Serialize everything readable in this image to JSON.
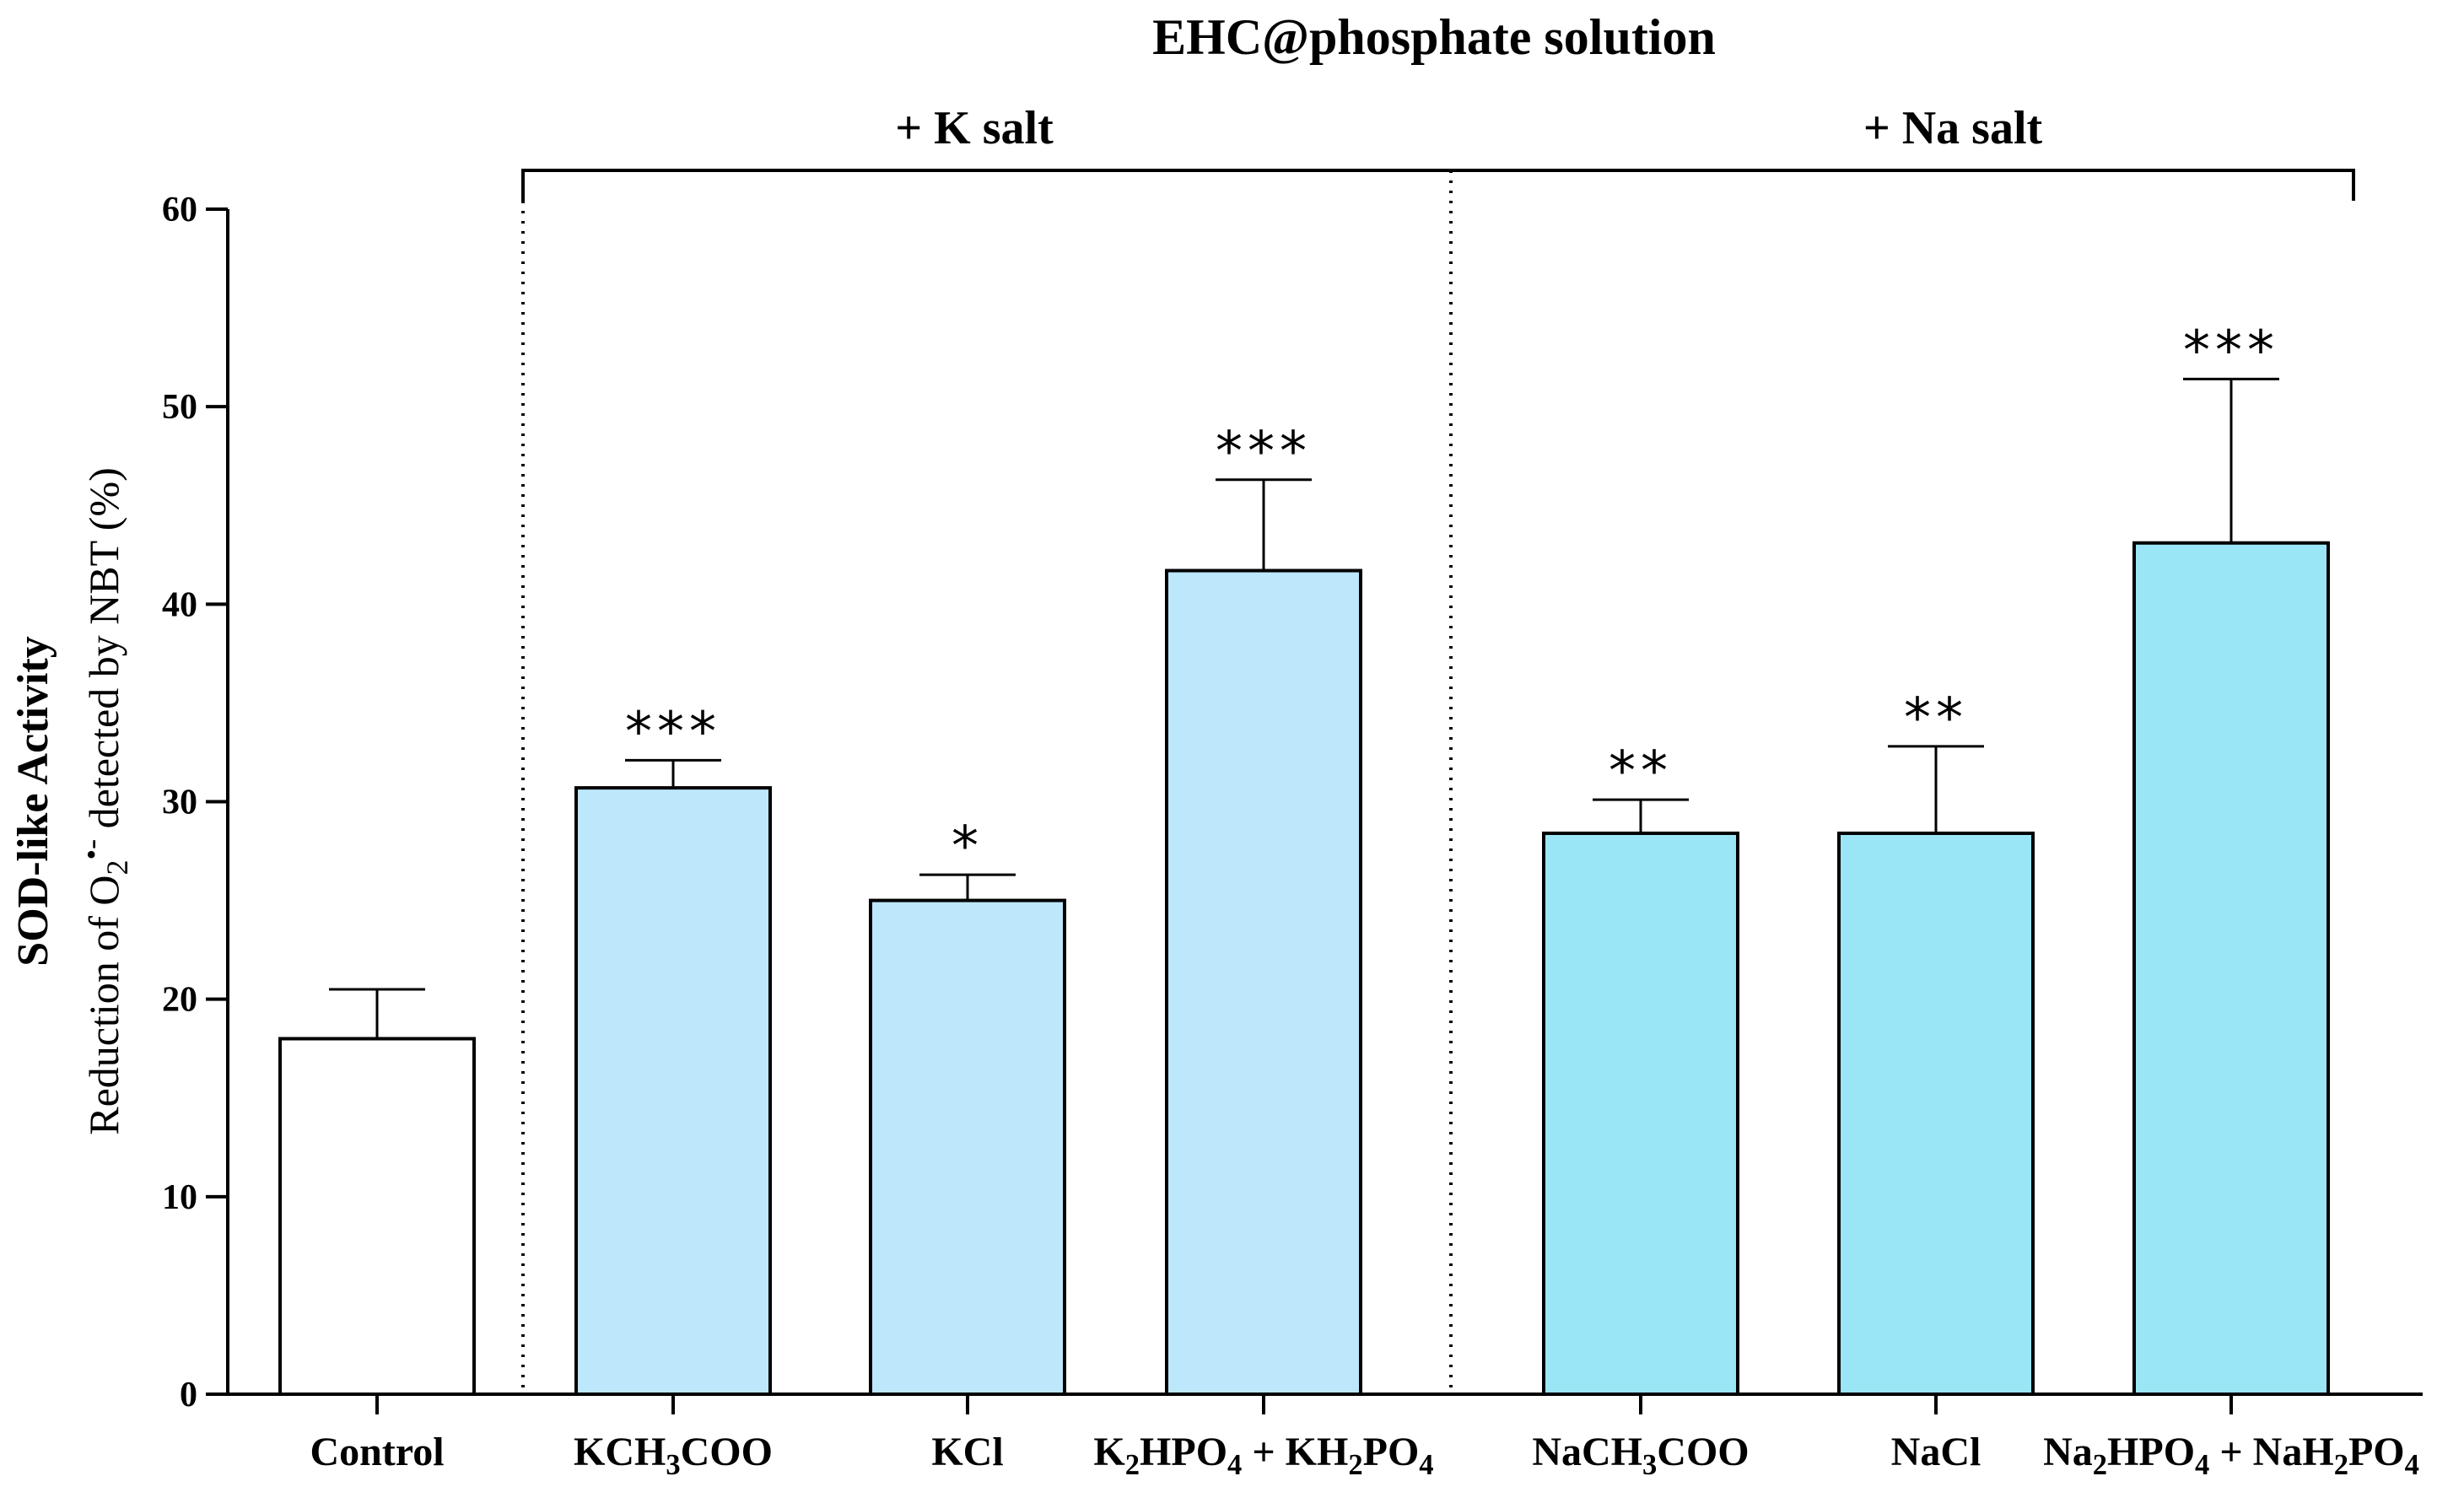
{
  "chart_data": {
    "type": "bar",
    "title": "EHC@phosphate solution",
    "groups": [
      {
        "label": "+ K salt",
        "categories": [
          "KCH3COO",
          "KCl",
          "K2HPO4 + KH2PO4"
        ]
      },
      {
        "label": "+ Na salt",
        "categories": [
          "NaCH3COO",
          "NaCl",
          "Na2HPO4 + NaH2PO4"
        ]
      }
    ],
    "categories": [
      "Control",
      "KCH3COO",
      "KCl",
      "K2HPO4 + KH2PO4",
      "NaCH3COO",
      "NaCl",
      "Na2HPO4 + NaH2PO4"
    ],
    "category_labels": [
      {
        "parts": [
          [
            "Control",
            ""
          ]
        ]
      },
      {
        "parts": [
          [
            "KCH",
            ""
          ],
          [
            "3",
            "sub"
          ],
          [
            "COO",
            ""
          ]
        ]
      },
      {
        "parts": [
          [
            "KCl",
            ""
          ]
        ]
      },
      {
        "parts": [
          [
            "K",
            ""
          ],
          [
            "2",
            "sub"
          ],
          [
            "HPO",
            ""
          ],
          [
            "4",
            "sub"
          ],
          [
            " +  KH",
            ""
          ],
          [
            "2",
            "sub"
          ],
          [
            "PO",
            ""
          ],
          [
            "4",
            "sub"
          ]
        ]
      },
      {
        "parts": [
          [
            "NaCH",
            ""
          ],
          [
            "3",
            "sub"
          ],
          [
            "COO",
            ""
          ]
        ]
      },
      {
        "parts": [
          [
            "NaCl",
            ""
          ]
        ]
      },
      {
        "parts": [
          [
            "Na",
            ""
          ],
          [
            "2",
            "sub"
          ],
          [
            "HPO",
            ""
          ],
          [
            "4",
            "sub"
          ],
          [
            " + NaH",
            ""
          ],
          [
            "2",
            "sub"
          ],
          [
            "PO",
            ""
          ],
          [
            "4",
            "sub"
          ]
        ]
      }
    ],
    "values": [
      18,
      30.7,
      25,
      41.7,
      28.4,
      28.4,
      43.1
    ],
    "errors": [
      2.5,
      1.4,
      1.3,
      4.6,
      1.7,
      4.4,
      8.3
    ],
    "significance": [
      "",
      "***",
      "*",
      "***",
      "**",
      "**",
      "***"
    ],
    "colors": [
      "#ffffff",
      "#bde7fb",
      "#bde7fb",
      "#bde7fb",
      "#9ae6f6",
      "#9ae6f6",
      "#9ae6f6"
    ],
    "ylabel_bold": "SOD-like Activity",
    "ylabel_parts": [
      [
        "Reduction of O",
        ""
      ],
      [
        "2",
        "sub"
      ],
      [
        "•-",
        "sup"
      ],
      [
        " detected by NBT (%)",
        ""
      ]
    ],
    "ylim": [
      0,
      60
    ],
    "yticks": [
      0,
      10,
      20,
      30,
      40,
      50,
      60
    ]
  }
}
